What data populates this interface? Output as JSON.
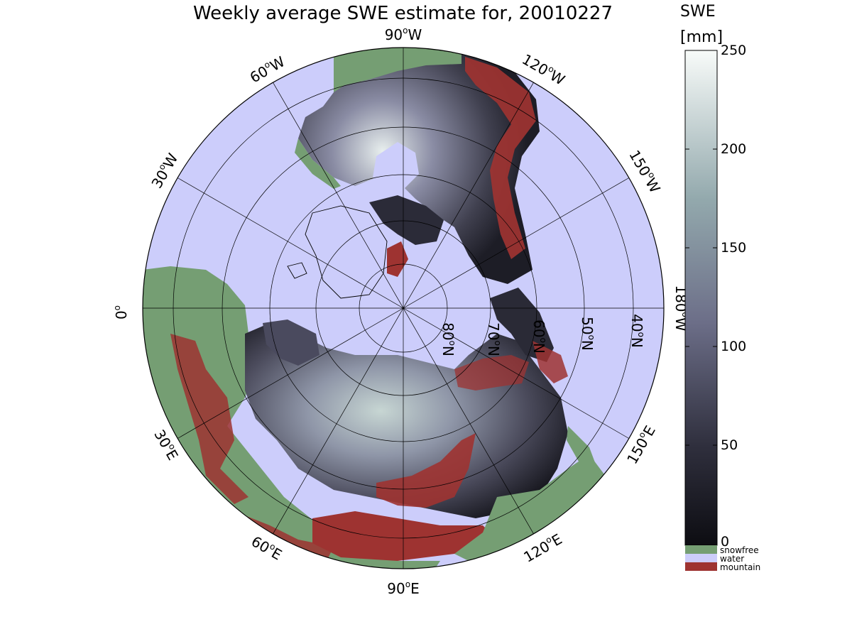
{
  "title": "Weekly average SWE estimate for, 20010227",
  "colors": {
    "water": "#cccdfb",
    "snowfree": "#759e73",
    "mountain": "#9e3331",
    "swe_low": "#0d0d12",
    "swe_mid": "#6c6e88",
    "swe_high": "#f8fbf9"
  },
  "longitude_labels": [
    {
      "text": "90°W",
      "deg": "90",
      "hem": "W"
    },
    {
      "text": "120°W",
      "deg": "120",
      "hem": "W"
    },
    {
      "text": "150°W",
      "deg": "150",
      "hem": "W"
    },
    {
      "text": "180°W",
      "deg": "180",
      "hem": "W"
    },
    {
      "text": "150°E",
      "deg": "150",
      "hem": "E"
    },
    {
      "text": "120°E",
      "deg": "120",
      "hem": "E"
    },
    {
      "text": "90°E",
      "deg": "90",
      "hem": "E"
    },
    {
      "text": "60°E",
      "deg": "60",
      "hem": "E"
    },
    {
      "text": "30°E",
      "deg": "30",
      "hem": "E"
    },
    {
      "text": "0°",
      "deg": "0",
      "hem": ""
    },
    {
      "text": "30°W",
      "deg": "30",
      "hem": "W"
    },
    {
      "text": "60°W",
      "deg": "60",
      "hem": "W"
    }
  ],
  "latitude_labels": [
    {
      "text": "80°N",
      "deg": "80",
      "hem": "N"
    },
    {
      "text": "70°N",
      "deg": "70",
      "hem": "N"
    },
    {
      "text": "60°N",
      "deg": "60",
      "hem": "N"
    },
    {
      "text": "50°N",
      "deg": "50",
      "hem": "N"
    },
    {
      "text": "40°N",
      "deg": "40",
      "hem": "N"
    }
  ],
  "colorbar": {
    "label_line1": "SWE",
    "label_line2": "[mm]",
    "range": [
      0,
      250
    ],
    "ticks": [
      "250",
      "200",
      "150",
      "100",
      "50",
      "0"
    ]
  },
  "legend": [
    {
      "label": "snowfree",
      "color": "#759e73"
    },
    {
      "label": "water",
      "color": "#cccdfb"
    },
    {
      "label": "mountain",
      "color": "#9e3331"
    }
  ]
}
